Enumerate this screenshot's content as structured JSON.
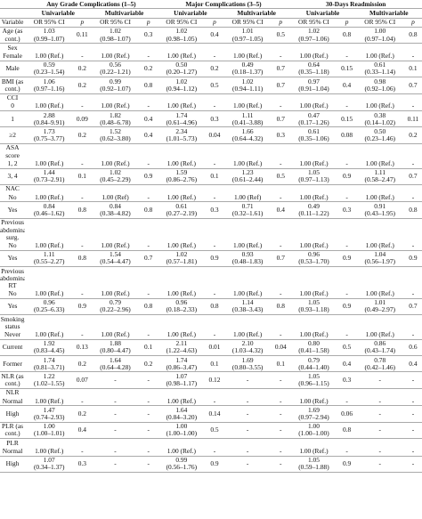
{
  "table": {
    "groups": [
      "Any Grade Complications (1–5)",
      "Major Complications (3–5)",
      "30-Days Readmission"
    ],
    "subgroups": [
      "Univariable",
      "Multivariable",
      "Univariable",
      "Multivariable",
      "Univariable",
      "Multivariable"
    ],
    "columns": [
      "Variable",
      "OR 95% CI",
      "p",
      "OR 95% CI",
      "p",
      "OR 95% CI",
      "p",
      "OR 95% CI",
      "p",
      "OR 95% CI",
      "p",
      "OR 95% CI",
      "p"
    ],
    "rows": [
      {
        "label": "Age (as cont.)",
        "cells": [
          [
            "1.03",
            "(0.99–1.07)"
          ],
          "0.11",
          [
            "1.02",
            "(0.98–1.07)"
          ],
          "0.3",
          [
            "1.02",
            "(0.98–1.05)"
          ],
          "0.4",
          [
            "1.01",
            "(0.97–1.05)"
          ],
          "0.5",
          [
            "1.02",
            "(0.97–1.06)"
          ],
          "0.8",
          [
            "1.00",
            "(0.97–1.04)"
          ],
          "0.8"
        ]
      },
      {
        "label": "Sex",
        "cells": []
      },
      {
        "label": "Female",
        "cells": [
          [
            "1.00 (Ref.)"
          ],
          "-",
          [
            "1.00 (Ref.)"
          ],
          "-",
          [
            "1.00 (Ref.)"
          ],
          "-",
          [
            "1.00 (Ref.)"
          ],
          "-",
          [
            "1.00 (Ref.)"
          ],
          "-",
          [
            "1.00 (Ref.)"
          ],
          "-"
        ]
      },
      {
        "label": "Male",
        "cells": [
          [
            "0.59",
            "(0.23–1.54)"
          ],
          "0.2",
          [
            "0.56",
            "(0.22–1.21)"
          ],
          "0.2",
          [
            "0.50",
            "(0.20–1.27)"
          ],
          "0.2",
          [
            "0.49",
            "(0.18–1.37)"
          ],
          "0.7",
          [
            "0.64",
            "(0.35–1.18)"
          ],
          "0.15",
          [
            "0.61",
            "(0.33–1.14)"
          ],
          "0.1"
        ]
      },
      {
        "label": "BMI (as cont.)",
        "cells": [
          [
            "1.06",
            "(0.97–1.16)"
          ],
          "0.2",
          [
            "0.99",
            "(0.92–1.07)"
          ],
          "0.8",
          [
            "1.02",
            "(0.94–1.12)"
          ],
          "0.5",
          [
            "1.02",
            "(0.94–1.11)"
          ],
          "0.7",
          [
            "0.97",
            "(0.91–1.04)"
          ],
          "0.4",
          [
            "0.98",
            "(0.92–1.06)"
          ],
          "0.7"
        ]
      },
      {
        "label": "CCI",
        "cells": []
      },
      {
        "label": "0",
        "cells": [
          [
            "1.00 (Ref.)"
          ],
          "-",
          [
            "1.00 (Ref.)"
          ],
          "-",
          [
            "1.00 (Ref.)"
          ],
          "-",
          [
            "1.00 (Ref.)"
          ],
          "-",
          [
            "1.00 (Ref.)"
          ],
          "-",
          [
            "1.00 (Ref.)"
          ],
          "-"
        ]
      },
      {
        "label": "1",
        "cells": [
          [
            "2.88",
            "(0.84–9.91)"
          ],
          "0.09",
          [
            "1.82",
            "(0.48–6.78)"
          ],
          "0.4",
          [
            "1.74",
            "(0.61–4.96)"
          ],
          "0.3",
          [
            "1.11",
            "(0.41–3.88)"
          ],
          "0.7",
          [
            "0.47",
            "(0.17–1.26)"
          ],
          "0.15",
          [
            "0.38",
            "(0.14–1.02)"
          ],
          "0.11"
        ]
      },
      {
        "label": "≥2",
        "cells": [
          [
            "1.73",
            "(0.75–3.77)"
          ],
          "0.2",
          [
            "1.52",
            "(0.62–3.80)"
          ],
          "0.4",
          [
            "2.34",
            "(1.01–5.73)"
          ],
          "0.04",
          [
            "1.66",
            "(0.64–4.32)"
          ],
          "0.3",
          [
            "0.61",
            "(0.35–1.06)"
          ],
          "0.08",
          [
            "0.50",
            "(0.23–1.46)"
          ],
          "0.2"
        ]
      },
      {
        "label": "ASA score",
        "cells": []
      },
      {
        "label": "1, 2",
        "cells": [
          [
            "1.00 (Ref.)"
          ],
          "-",
          [
            "1.00 (Ref.)"
          ],
          "-",
          [
            "1.00 (Ref.)"
          ],
          "-",
          [
            "1.00 (Ref.)"
          ],
          "-",
          [
            "1.00 (Ref.)"
          ],
          "-",
          [
            "1.00 (Ref.)"
          ],
          "-"
        ]
      },
      {
        "label": "3, 4",
        "cells": [
          [
            "1.44",
            "(0.73–2.91)"
          ],
          "0.1",
          [
            "1.02",
            "(0.45–2.29)"
          ],
          "0.9",
          [
            "1.59",
            "(0.86–2.76)"
          ],
          "0.1",
          [
            "1.23",
            "(0.61–2.44)"
          ],
          "0.5",
          [
            "1.05",
            "(0.97–1.13)"
          ],
          "0.9",
          [
            "1.11",
            "(0.58–2.47)"
          ],
          "0.7"
        ]
      },
      {
        "label": "NAC",
        "cells": []
      },
      {
        "label": "No",
        "cells": [
          [
            "1.00 (Ref.)"
          ],
          "-",
          [
            "1.00 (Ref)"
          ],
          "-",
          [
            "1.00 (Ref.)"
          ],
          "-",
          [
            "1.00 (Ref)"
          ],
          "-",
          [
            "1.00 (Ref.)"
          ],
          "-",
          [
            "1.00 (Ref.)"
          ],
          "-"
        ]
      },
      {
        "label": "Yes",
        "cells": [
          [
            "0.84",
            "(0.46–1.62)"
          ],
          "0.8",
          [
            "0.84",
            "(0.38–4.82)"
          ],
          "0.8",
          [
            "0.61",
            "(0.27–2.19)"
          ],
          "0.3",
          [
            "0.71",
            "(0.32–1.61)"
          ],
          "0.4",
          [
            "0.49",
            "(0.11–1.22)"
          ],
          "0.3",
          [
            "0.91",
            "(0.43–1.95)"
          ],
          "0.8"
        ]
      },
      {
        "label": "Previous abdominal surg.",
        "cells": []
      },
      {
        "label": "No",
        "cells": [
          [
            "1.00 (Ref.)"
          ],
          "-",
          [
            "1.00 (Ref.)"
          ],
          "-",
          [
            "1.00 (Ref.)"
          ],
          "-",
          [
            "1.00 (Ref.)"
          ],
          "-",
          [
            "1.00 (Ref.)"
          ],
          "-",
          [
            "1.00 (Ref.)"
          ],
          "-"
        ]
      },
      {
        "label": "Yes",
        "cells": [
          [
            "1.11",
            "(0.55–2.27)"
          ],
          "0.8",
          [
            "1.54",
            "(0.54–4.47)"
          ],
          "0.7",
          [
            "1.02",
            "(0.57–1.81)"
          ],
          "0.9",
          [
            "0.93",
            "(0.48–1.83)"
          ],
          "0.7",
          [
            "0.96",
            "(0.53–1.70)"
          ],
          "0.9",
          [
            "1.04",
            "(0.56–1.97)"
          ],
          "0.9"
        ]
      },
      {
        "label": "Previous abdominal RT",
        "cells": []
      },
      {
        "label": "No",
        "cells": [
          [
            "1.00 (Ref.)"
          ],
          "-",
          [
            "1.00 (Ref.)"
          ],
          "-",
          [
            "1.00 (Ref.)"
          ],
          "-",
          [
            "1.00 (Ref.)"
          ],
          "-",
          [
            "1.00 (Ref.)"
          ],
          "-",
          [
            "1.00 (Ref.)"
          ],
          "-"
        ]
      },
      {
        "label": "Yes",
        "cells": [
          [
            "0.96",
            "(0.25–6.33)"
          ],
          "0.9",
          [
            "0.79",
            "(0.22–2.96)"
          ],
          "0.8",
          [
            "0.96",
            "(0.18–2.33)"
          ],
          "0.8",
          [
            "1.14",
            "(0.38–3.43)"
          ],
          "0.8",
          [
            "1.05",
            "(0.93–1.18)"
          ],
          "0.9",
          [
            "1.01",
            "(0.49–2.97)"
          ],
          "0.7"
        ]
      },
      {
        "label": "Smoking status",
        "cells": []
      },
      {
        "label": "Never",
        "cells": [
          [
            "1.00 (Ref.)"
          ],
          "-",
          [
            "1.00 (Ref.)"
          ],
          "-",
          [
            "1.00 (Ref.)"
          ],
          "-",
          [
            "1.00 (Ref.)"
          ],
          "-",
          [
            "1.00 (Ref.)"
          ],
          "-",
          [
            "1.00 (Ref.)"
          ],
          "-"
        ]
      },
      {
        "label": "Current",
        "cells": [
          [
            "1.92",
            "(0.83–4.45)"
          ],
          "0.13",
          [
            "1.88",
            "(0.80–4.47)"
          ],
          "0.1",
          [
            "2.11",
            "(1.22–4.63)"
          ],
          "0.01",
          [
            "2.10",
            "(1.03–4.32)"
          ],
          "0.04",
          [
            "0.80",
            "(0.41–1.58)"
          ],
          "0.5",
          [
            "0.86",
            "(0.43–1.74)"
          ],
          "0.6"
        ]
      },
      {
        "label": "Former",
        "cells": [
          [
            "1.74",
            "(0.81–3.71)"
          ],
          "0.2",
          [
            "1.64",
            "(0.64–4.28)"
          ],
          "0.2",
          [
            "1.74",
            "(0.86–3.47)"
          ],
          "0.1",
          [
            "1.69",
            "(0.80–3.55)"
          ],
          "0.1",
          [
            "0.79",
            "(0.44–1.40)"
          ],
          "0.4",
          [
            "0.78",
            "(0.42–1.46)"
          ],
          "0.4"
        ]
      },
      {
        "label": "NLR (as cont.)",
        "cells": [
          [
            "1.22",
            "(1.02–1.55)"
          ],
          "0.07",
          "-",
          "-",
          [
            "1.07",
            "(0.98–1.17)"
          ],
          "0.12",
          "-",
          "-",
          [
            "1.05",
            "(0.96–1.15)"
          ],
          "0.3",
          "-",
          "-"
        ]
      },
      {
        "label": "NLR",
        "cells": []
      },
      {
        "label": "Normal",
        "cells": [
          [
            "1.00 (Ref.)"
          ],
          "-",
          "-",
          "-",
          [
            "1.00 (Ref.)"
          ],
          "-",
          "-",
          "-",
          [
            "1.00 (Ref.)"
          ],
          "-",
          "-",
          "-"
        ]
      },
      {
        "label": "High",
        "cells": [
          [
            "1.47",
            "(0.74–2.93)"
          ],
          "0.2",
          "-",
          "-",
          [
            "1.64",
            "(0.84–3.20)"
          ],
          "0.14",
          "-",
          "-",
          [
            "1.69",
            "(0.97–2.94)"
          ],
          "0.06",
          "-",
          "-"
        ]
      },
      {
        "label": "PLR (as cont.)",
        "cells": [
          [
            "1.00",
            "(1.00–1.01)"
          ],
          "0.4",
          "-",
          "-",
          [
            "1.00",
            "(1.00–1.00)"
          ],
          "0.5",
          "-",
          "-",
          [
            "1.00",
            "(1.00–1.00)"
          ],
          "0.8",
          "-",
          "-"
        ]
      },
      {
        "label": "PLR",
        "cells": []
      },
      {
        "label": "Normal",
        "cells": [
          [
            "1.00 (Ref.)"
          ],
          "-",
          "-",
          "-",
          [
            "1.00 (Ref.)"
          ],
          "-",
          "-",
          "-",
          [
            "1.00 (Ref.)"
          ],
          "-",
          "-",
          "-"
        ]
      },
      {
        "label": "High",
        "cells": [
          [
            "1.07",
            "(0.34–1.37)"
          ],
          "0.3",
          "-",
          "-",
          [
            "0.99",
            "(0.56–1.76)"
          ],
          "0.9",
          "-",
          "-",
          [
            "1.05",
            "(0.59–1.88)"
          ],
          "0.9",
          "-",
          "-"
        ]
      }
    ]
  }
}
